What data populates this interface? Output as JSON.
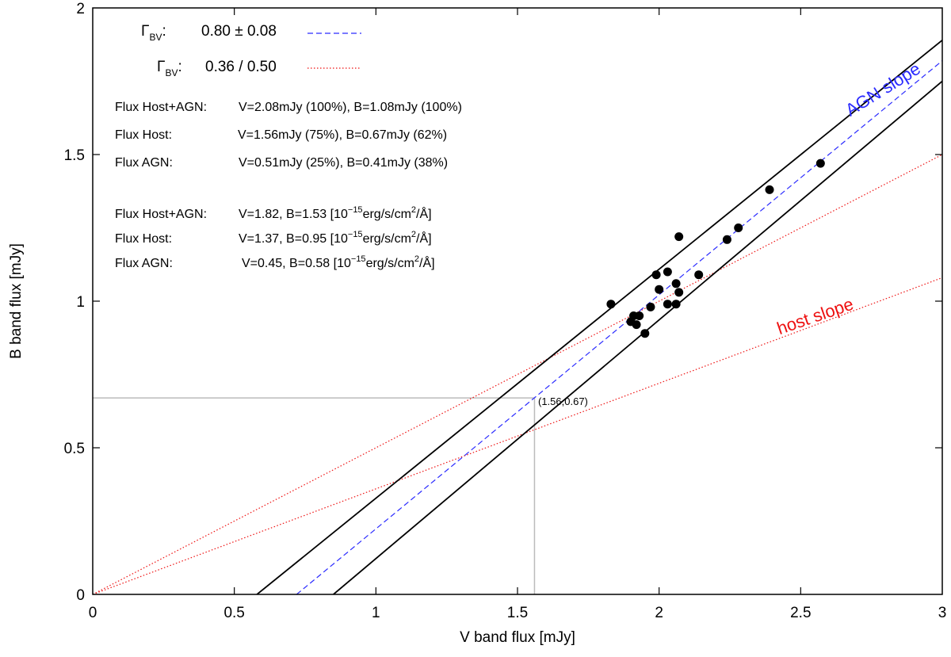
{
  "chart_data": {
    "type": "scatter",
    "xlabel": "V band flux [mJy]",
    "ylabel": "B band flux [mJy]",
    "xlim": [
      0,
      3
    ],
    "ylim": [
      0,
      2
    ],
    "xticks": [
      "0",
      "0.5",
      "1",
      "1.5",
      "2",
      "2.5",
      "3"
    ],
    "yticks": [
      "0",
      "0.5",
      "1",
      "1.5",
      "2"
    ],
    "points": [
      {
        "x": 1.83,
        "y": 0.99
      },
      {
        "x": 1.9,
        "y": 0.93
      },
      {
        "x": 1.91,
        "y": 0.95
      },
      {
        "x": 1.92,
        "y": 0.92
      },
      {
        "x": 1.93,
        "y": 0.95
      },
      {
        "x": 1.95,
        "y": 0.89
      },
      {
        "x": 1.97,
        "y": 0.98
      },
      {
        "x": 1.99,
        "y": 1.09
      },
      {
        "x": 2.0,
        "y": 1.04
      },
      {
        "x": 2.03,
        "y": 1.1
      },
      {
        "x": 2.03,
        "y": 0.99
      },
      {
        "x": 2.06,
        "y": 1.06
      },
      {
        "x": 2.06,
        "y": 0.99
      },
      {
        "x": 2.07,
        "y": 1.03
      },
      {
        "x": 2.07,
        "y": 1.22
      },
      {
        "x": 2.14,
        "y": 1.09
      },
      {
        "x": 2.24,
        "y": 1.21
      },
      {
        "x": 2.28,
        "y": 1.25
      },
      {
        "x": 2.39,
        "y": 1.38
      },
      {
        "x": 2.57,
        "y": 1.47
      }
    ],
    "lines": [
      {
        "name": "AGN slope fit",
        "style": "blue-dashed",
        "from": [
          0.72,
          0
        ],
        "to": [
          3,
          1.82
        ]
      },
      {
        "name": "fit bound upper",
        "style": "black-solid",
        "from": [
          0.58,
          0
        ],
        "to": [
          3,
          1.89
        ]
      },
      {
        "name": "fit bound lower",
        "style": "black-solid",
        "from": [
          0.85,
          0
        ],
        "to": [
          3,
          1.75
        ]
      },
      {
        "name": "host slope 0.50",
        "style": "red-dotted",
        "from": [
          0,
          0
        ],
        "to": [
          3,
          1.5
        ]
      },
      {
        "name": "host slope 0.36",
        "style": "red-dotted",
        "from": [
          0,
          0
        ],
        "to": [
          3,
          1.08
        ]
      }
    ],
    "host_point": {
      "x": 1.56,
      "y": 0.67,
      "label": "(1.56,0.67)"
    },
    "slope_labels": {
      "agn": "AGN slope",
      "host": "host slope"
    },
    "legend": [
      {
        "symbol": "Γ",
        "subscript": "BV",
        "value": "0.80 ± 0.08",
        "style": "blue-dashed"
      },
      {
        "symbol": "Γ",
        "subscript": "BV",
        "value": "0.36 / 0.50",
        "style": "red-dotted"
      }
    ],
    "annotations": [
      {
        "label": "Flux Host+AGN:",
        "value": "V=2.08mJy (100%), B=1.08mJy (100%)"
      },
      {
        "label": "Flux Host:",
        "value": "V=1.56mJy (75%), B=0.67mJy (62%)"
      },
      {
        "label": "Flux AGN:",
        "value": "V=0.51mJy (25%), B=0.41mJy (38%)"
      },
      {
        "label": "Flux Host+AGN:",
        "value": "V=1.82, B=1.53 [10",
        "exp": "−15",
        "unit": "erg/s/cm",
        "unit_exp": "2",
        "unit_tail": "/Å]"
      },
      {
        "label": "Flux Host:",
        "value": "V=1.37, B=0.95 [10",
        "exp": "−15",
        "unit": "erg/s/cm",
        "unit_exp": "2",
        "unit_tail": "/Å]"
      },
      {
        "label": "Flux AGN:",
        "value": "V=0.45, B=0.58 [10",
        "exp": "−15",
        "unit": "erg/s/cm",
        "unit_exp": "2",
        "unit_tail": "/Å]"
      }
    ],
    "colors": {
      "agn_fit": "#2b2bff",
      "host": "#ee1111",
      "bounds": "#000000",
      "guide": "#bbbbbb",
      "points": "#000000"
    }
  }
}
